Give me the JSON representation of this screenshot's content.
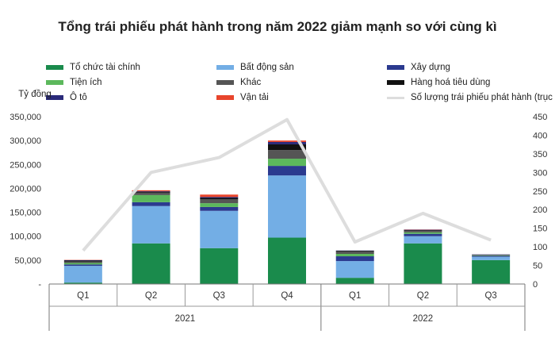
{
  "chart_data": {
    "type": "bar",
    "title": "Tổng trái phiếu phát hành trong năm 2022 giảm mạnh so với cùng kì",
    "ylabel": "Tỷ đồng",
    "ylim": [
      0,
      350000
    ],
    "y_ticks": [
      "-",
      "50,000",
      "100,000",
      "150,000",
      "200,000",
      "250,000",
      "300,000",
      "350,000"
    ],
    "y2lim": [
      0,
      450
    ],
    "y2_ticks": [
      "0",
      "50",
      "100",
      "150",
      "200",
      "250",
      "300",
      "350",
      "400",
      "450"
    ],
    "categories": [
      "Q1",
      "Q2",
      "Q3",
      "Q4",
      "Q1",
      "Q2",
      "Q3"
    ],
    "groups": [
      {
        "label": "2021",
        "categories": [
          "Q1",
          "Q2",
          "Q3",
          "Q4"
        ]
      },
      {
        "label": "2022",
        "categories": [
          "Q1",
          "Q2",
          "Q3"
        ]
      }
    ],
    "grid": false,
    "legend_position": "top",
    "series": [
      {
        "name": "Tổ chức tài chính",
        "color": "#1a8b4c",
        "values": [
          3000,
          85000,
          75000,
          97000,
          13000,
          85000,
          50000
        ]
      },
      {
        "name": "Bất động sản",
        "color": "#73aee5",
        "values": [
          35000,
          78000,
          78000,
          130000,
          35000,
          15000,
          7000
        ]
      },
      {
        "name": "Xây dựng",
        "color": "#2b3a8f",
        "values": [
          3000,
          8000,
          8000,
          20000,
          10000,
          5000,
          2000
        ]
      },
      {
        "name": "Tiện ích",
        "color": "#5cb85c",
        "values": [
          3000,
          15000,
          8000,
          15000,
          5000,
          3000,
          1000
        ]
      },
      {
        "name": "Khác",
        "color": "#555555",
        "values": [
          3000,
          5000,
          8000,
          18000,
          5000,
          3000,
          1000
        ]
      },
      {
        "name": "Hàng hoá tiêu dùng",
        "color": "#111111",
        "values": [
          2000,
          2000,
          3000,
          12000,
          1500,
          1500,
          500
        ]
      },
      {
        "name": "Ô tô",
        "color": "#2a2a7a",
        "values": [
          1000,
          1000,
          2000,
          5000,
          500,
          1000,
          500
        ]
      },
      {
        "name": "Vận tải",
        "color": "#e8452c",
        "values": [
          500,
          2000,
          5000,
          3000,
          0,
          500,
          0
        ]
      }
    ],
    "line_series": {
      "name": "Số lượng trái phiếu phát hành (trục phải)",
      "color": "#dddddd",
      "axis": "right",
      "values": [
        90,
        300,
        340,
        442,
        113,
        190,
        118
      ]
    }
  }
}
